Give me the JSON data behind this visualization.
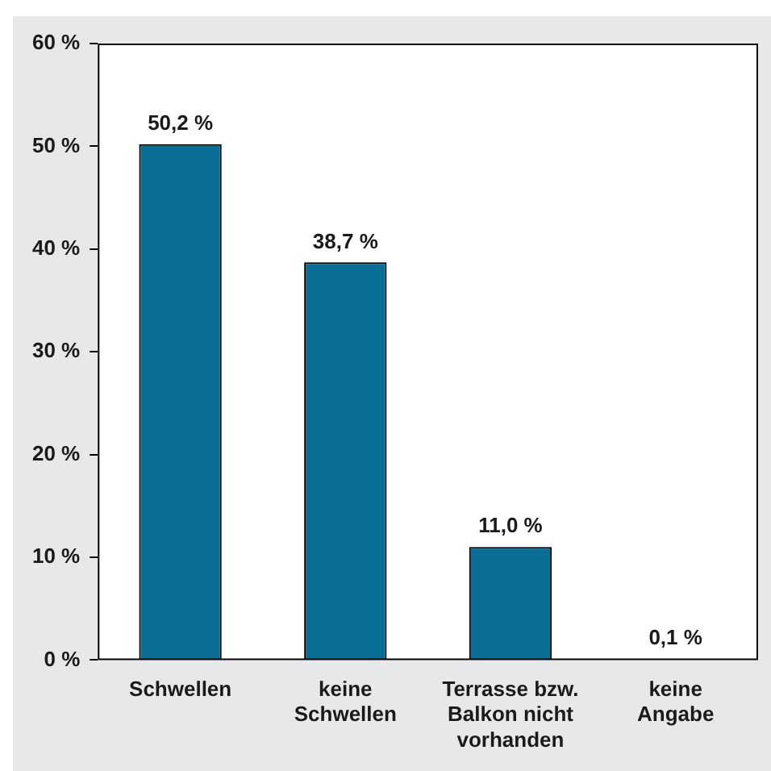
{
  "chart_data": {
    "type": "bar",
    "categories": [
      "Schwellen",
      "keine\nSchwellen",
      "Terrasse bzw.\nBalkon nicht\nvorhanden",
      "keine\nAngabe"
    ],
    "values": [
      50.2,
      38.7,
      11.0,
      0.1
    ],
    "value_labels": [
      "50,2 %",
      "38,7 %",
      "11,0 %",
      "0,1 %"
    ],
    "color": "#0a6e96",
    "ylim": [
      0,
      60
    ],
    "yticks": [
      {
        "value": 0,
        "label": "0 %"
      },
      {
        "value": 10,
        "label": "10 %"
      },
      {
        "value": 20,
        "label": "20 %"
      },
      {
        "value": 30,
        "label": "30 %"
      },
      {
        "value": 40,
        "label": "40 %"
      },
      {
        "value": 50,
        "label": "50 %"
      },
      {
        "value": 60,
        "label": "60 %"
      }
    ],
    "legend": false
  }
}
